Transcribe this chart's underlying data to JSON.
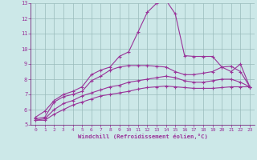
{
  "xlabel": "Windchill (Refroidissement éolien,°C)",
  "background_color": "#cce8e8",
  "line_color": "#993399",
  "grid_color": "#99bbbb",
  "spine_color": "#660066",
  "xlim": [
    -0.5,
    23.5
  ],
  "ylim": [
    5,
    13
  ],
  "xticks": [
    0,
    1,
    2,
    3,
    4,
    5,
    6,
    7,
    8,
    9,
    10,
    11,
    12,
    13,
    14,
    15,
    16,
    17,
    18,
    19,
    20,
    21,
    22,
    23
  ],
  "yticks": [
    5,
    6,
    7,
    8,
    9,
    10,
    11,
    12,
    13
  ],
  "line1_x": [
    0,
    1,
    2,
    3,
    4,
    5,
    6,
    7,
    8,
    9,
    10,
    11,
    12,
    13,
    14,
    15,
    16,
    17,
    18,
    19,
    20,
    21,
    22,
    23
  ],
  "line1_y": [
    5.5,
    5.9,
    6.6,
    7.0,
    7.2,
    7.5,
    8.3,
    8.6,
    8.8,
    9.5,
    9.8,
    11.1,
    12.4,
    13.0,
    13.2,
    12.3,
    9.55,
    9.5,
    9.5,
    9.5,
    8.8,
    8.5,
    9.0,
    7.5
  ],
  "line2_x": [
    0,
    1,
    2,
    3,
    4,
    5,
    6,
    7,
    8,
    9,
    10,
    11,
    12,
    13,
    14,
    15,
    16,
    17,
    18,
    19,
    20,
    21,
    22,
    23
  ],
  "line2_y": [
    5.4,
    5.5,
    6.5,
    6.85,
    7.0,
    7.2,
    7.9,
    8.2,
    8.6,
    8.8,
    8.9,
    8.9,
    8.9,
    8.85,
    8.8,
    8.5,
    8.3,
    8.3,
    8.4,
    8.5,
    8.8,
    8.85,
    8.5,
    7.5
  ],
  "line3_x": [
    0,
    1,
    2,
    3,
    4,
    5,
    6,
    7,
    8,
    9,
    10,
    11,
    12,
    13,
    14,
    15,
    16,
    17,
    18,
    19,
    20,
    21,
    22,
    23
  ],
  "line3_y": [
    5.3,
    5.4,
    6.0,
    6.4,
    6.6,
    6.9,
    7.1,
    7.3,
    7.5,
    7.6,
    7.8,
    7.9,
    8.0,
    8.1,
    8.2,
    8.1,
    7.9,
    7.8,
    7.8,
    7.9,
    8.0,
    8.0,
    7.8,
    7.5
  ],
  "line4_x": [
    0,
    1,
    2,
    3,
    4,
    5,
    6,
    7,
    8,
    9,
    10,
    11,
    12,
    13,
    14,
    15,
    16,
    17,
    18,
    19,
    20,
    21,
    22,
    23
  ],
  "line4_y": [
    5.3,
    5.3,
    5.7,
    6.0,
    6.3,
    6.5,
    6.7,
    6.9,
    7.0,
    7.1,
    7.2,
    7.35,
    7.45,
    7.5,
    7.55,
    7.5,
    7.45,
    7.4,
    7.4,
    7.4,
    7.45,
    7.5,
    7.5,
    7.5
  ]
}
